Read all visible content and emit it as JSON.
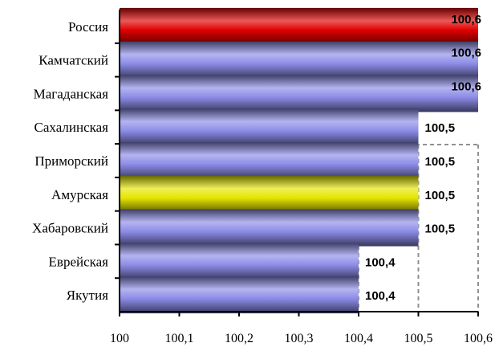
{
  "chart_data": {
    "type": "bar",
    "orientation": "horizontal",
    "title": "",
    "categories": [
      "Россия",
      "Камчатский",
      "Магаданская",
      "Сахалинская",
      "Приморский",
      "Амурская",
      "Хабаровский",
      "Еврейская",
      "Якутия"
    ],
    "values": [
      100.6,
      100.6,
      100.6,
      100.5,
      100.5,
      100.5,
      100.5,
      100.4,
      100.4
    ],
    "value_labels": [
      "100,6",
      "100,6",
      "100,6",
      "100,5",
      "100,5",
      "100,5",
      "100,5",
      "100,4",
      "100,4"
    ],
    "bar_colors": [
      "#e00000",
      "#8c8ce8",
      "#8c8ce8",
      "#8c8ce8",
      "#8c8ce8",
      "#e6e600",
      "#8c8ce8",
      "#8c8ce8",
      "#8c8ce8"
    ],
    "xlim": [
      100,
      100.6
    ],
    "xticks": [
      100,
      100.1,
      100.2,
      100.3,
      100.4,
      100.5,
      100.6
    ],
    "xtick_labels": [
      "100",
      "100,1",
      "100,2",
      "100,3",
      "100,4",
      "100,5",
      "100,6"
    ],
    "grid": "dashed-vertical",
    "legend": "none"
  }
}
